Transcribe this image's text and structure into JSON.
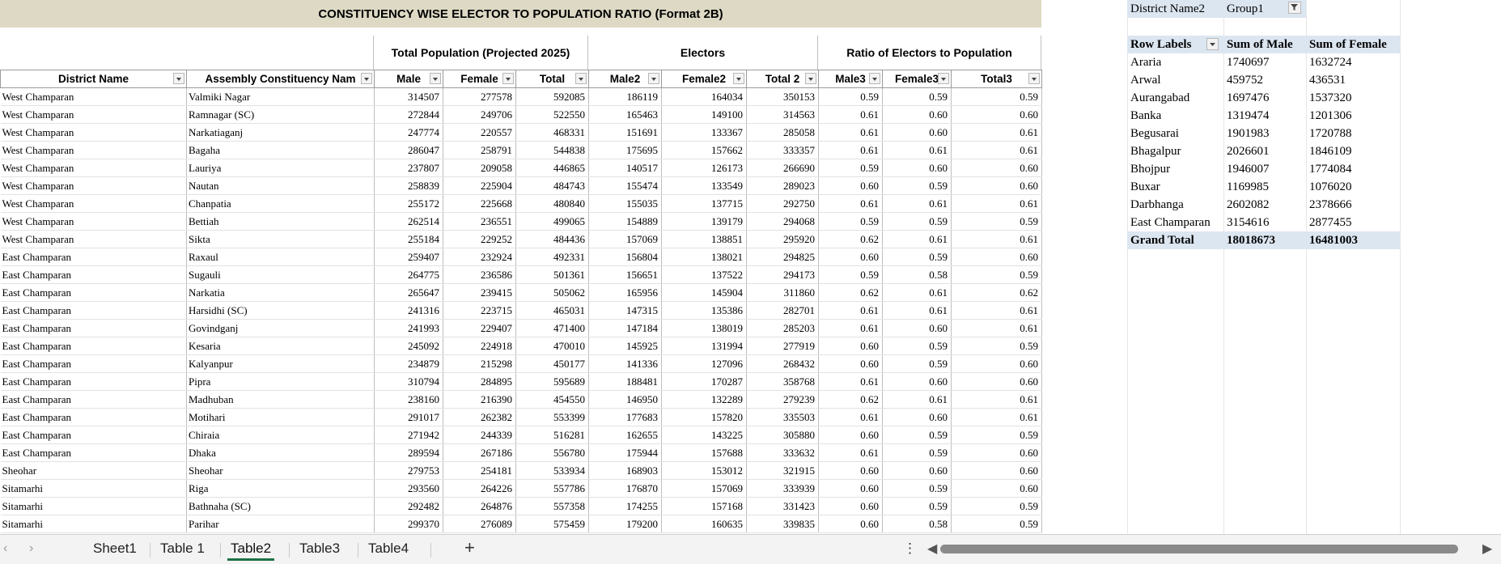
{
  "title": "CONSTITUENCY WISE ELECTOR TO POPULATION RATIO (Format 2B)",
  "groups": {
    "population": "Total Population (Projected 2025)",
    "electors": "Electors",
    "ratio": "Ratio of Electors to Population"
  },
  "columns": [
    "District Name",
    "Assembly Constituency Nam",
    "Male",
    "Female",
    "Total",
    "Male2",
    "Female2",
    "Total 2",
    "Male3",
    "Female3",
    "Total3"
  ],
  "rows": [
    [
      "West Champaran",
      "Valmiki Nagar",
      "314507",
      "277578",
      "592085",
      "186119",
      "164034",
      "350153",
      "0.59",
      "0.59",
      "0.59"
    ],
    [
      "West Champaran",
      "Ramnagar (SC)",
      "272844",
      "249706",
      "522550",
      "165463",
      "149100",
      "314563",
      "0.61",
      "0.60",
      "0.60"
    ],
    [
      "West Champaran",
      "Narkatiaganj",
      "247774",
      "220557",
      "468331",
      "151691",
      "133367",
      "285058",
      "0.61",
      "0.60",
      "0.61"
    ],
    [
      "West Champaran",
      "Bagaha",
      "286047",
      "258791",
      "544838",
      "175695",
      "157662",
      "333357",
      "0.61",
      "0.61",
      "0.61"
    ],
    [
      "West Champaran",
      "Lauriya",
      "237807",
      "209058",
      "446865",
      "140517",
      "126173",
      "266690",
      "0.59",
      "0.60",
      "0.60"
    ],
    [
      "West Champaran",
      "Nautan",
      "258839",
      "225904",
      "484743",
      "155474",
      "133549",
      "289023",
      "0.60",
      "0.59",
      "0.60"
    ],
    [
      "West Champaran",
      "Chanpatia",
      "255172",
      "225668",
      "480840",
      "155035",
      "137715",
      "292750",
      "0.61",
      "0.61",
      "0.61"
    ],
    [
      "West Champaran",
      "Bettiah",
      "262514",
      "236551",
      "499065",
      "154889",
      "139179",
      "294068",
      "0.59",
      "0.59",
      "0.59"
    ],
    [
      "West Champaran",
      "Sikta",
      "255184",
      "229252",
      "484436",
      "157069",
      "138851",
      "295920",
      "0.62",
      "0.61",
      "0.61"
    ],
    [
      "East Champaran",
      "Raxaul",
      "259407",
      "232924",
      "492331",
      "156804",
      "138021",
      "294825",
      "0.60",
      "0.59",
      "0.60"
    ],
    [
      "East Champaran",
      "Sugauli",
      "264775",
      "236586",
      "501361",
      "156651",
      "137522",
      "294173",
      "0.59",
      "0.58",
      "0.59"
    ],
    [
      "East Champaran",
      "Narkatia",
      "265647",
      "239415",
      "505062",
      "165956",
      "145904",
      "311860",
      "0.62",
      "0.61",
      "0.62"
    ],
    [
      "East Champaran",
      "Harsidhi (SC)",
      "241316",
      "223715",
      "465031",
      "147315",
      "135386",
      "282701",
      "0.61",
      "0.61",
      "0.61"
    ],
    [
      "East Champaran",
      "Govindganj",
      "241993",
      "229407",
      "471400",
      "147184",
      "138019",
      "285203",
      "0.61",
      "0.60",
      "0.61"
    ],
    [
      "East Champaran",
      "Kesaria",
      "245092",
      "224918",
      "470010",
      "145925",
      "131994",
      "277919",
      "0.60",
      "0.59",
      "0.59"
    ],
    [
      "East Champaran",
      "Kalyanpur",
      "234879",
      "215298",
      "450177",
      "141336",
      "127096",
      "268432",
      "0.60",
      "0.59",
      "0.60"
    ],
    [
      "East Champaran",
      "Pipra",
      "310794",
      "284895",
      "595689",
      "188481",
      "170287",
      "358768",
      "0.61",
      "0.60",
      "0.60"
    ],
    [
      "East Champaran",
      "Madhuban",
      "238160",
      "216390",
      "454550",
      "146950",
      "132289",
      "279239",
      "0.62",
      "0.61",
      "0.61"
    ],
    [
      "East Champaran",
      "Motihari",
      "291017",
      "262382",
      "553399",
      "177683",
      "157820",
      "335503",
      "0.61",
      "0.60",
      "0.61"
    ],
    [
      "East Champaran",
      "Chiraia",
      "271942",
      "244339",
      "516281",
      "162655",
      "143225",
      "305880",
      "0.60",
      "0.59",
      "0.59"
    ],
    [
      "East Champaran",
      "Dhaka",
      "289594",
      "267186",
      "556780",
      "175944",
      "157688",
      "333632",
      "0.61",
      "0.59",
      "0.60"
    ],
    [
      "Sheohar",
      "Sheohar",
      "279753",
      "254181",
      "533934",
      "168903",
      "153012",
      "321915",
      "0.60",
      "0.60",
      "0.60"
    ],
    [
      "Sitamarhi",
      "Riga",
      "293560",
      "264226",
      "557786",
      "176870",
      "157069",
      "333939",
      "0.60",
      "0.59",
      "0.60"
    ],
    [
      "Sitamarhi",
      "Bathnaha (SC)",
      "292482",
      "264876",
      "557358",
      "174255",
      "157168",
      "331423",
      "0.60",
      "0.59",
      "0.59"
    ],
    [
      "Sitamarhi",
      "Parihar",
      "299370",
      "276089",
      "575459",
      "179200",
      "160635",
      "339835",
      "0.60",
      "0.58",
      "0.59"
    ]
  ],
  "pivot": {
    "filter_label": "District Name2",
    "filter_value": "Group1",
    "headers": [
      "Row Labels",
      "Sum of Male",
      "Sum of Female"
    ],
    "rows": [
      [
        "Araria",
        "1740697",
        "1632724"
      ],
      [
        "Arwal",
        "459752",
        "436531"
      ],
      [
        "Aurangabad",
        "1697476",
        "1537320"
      ],
      [
        "Banka",
        "1319474",
        "1201306"
      ],
      [
        "Begusarai",
        "1901983",
        "1720788"
      ],
      [
        "Bhagalpur",
        "2026601",
        "1846109"
      ],
      [
        "Bhojpur",
        "1946007",
        "1774084"
      ],
      [
        "Buxar",
        "1169985",
        "1076020"
      ],
      [
        "Darbhanga",
        "2602082",
        "2378666"
      ],
      [
        "East Champaran",
        "3154616",
        "2877455"
      ]
    ],
    "grand_total": [
      "Grand Total",
      "18018673",
      "16481003"
    ]
  },
  "tabs": {
    "items": [
      "Sheet1",
      "Table 1",
      "Table2",
      "Table3",
      "Table4"
    ],
    "active": "Table2",
    "add_label": "+",
    "more_label": "⋮",
    "prev_icon": "chevron-left-icon",
    "next_icon": "chevron-right-icon"
  },
  "colors": {
    "title_band": "#ddd9c4",
    "pivot_header": "#dce6f1",
    "active_tab_underline": "#1e7145"
  }
}
